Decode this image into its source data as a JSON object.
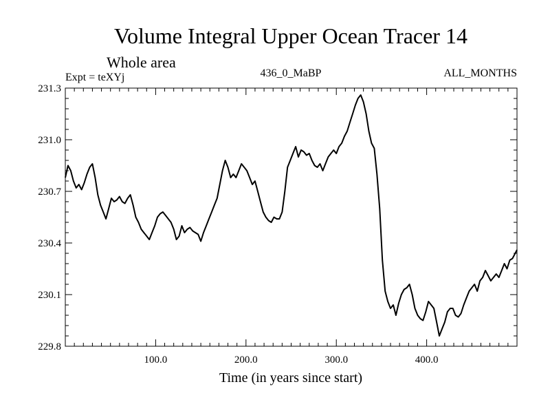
{
  "chart_data": {
    "type": "line",
    "title": "Volume Integral Upper Ocean Tracer 14",
    "subtitle": "Whole area",
    "expt_label": "Expt = teXYj",
    "center_label": "436_0_MaBP",
    "right_label": "ALL_MONTHS",
    "xlabel": "Time (in years since start)",
    "ylabel": "",
    "xlim": [
      0,
      500
    ],
    "ylim": [
      229.8,
      231.3
    ],
    "x_ticks": [
      100,
      200,
      300,
      400
    ],
    "x_tick_labels": [
      "100.0",
      "200.0",
      "300.0",
      "400.0"
    ],
    "y_ticks": [
      229.8,
      230.1,
      230.4,
      230.7,
      231.0,
      231.3
    ],
    "y_tick_labels": [
      "229.8",
      "230.1",
      "230.4",
      "230.7",
      "231.0",
      "231.3"
    ],
    "grid": false,
    "series": [
      {
        "color": "#000000",
        "x": [
          0,
          3,
          6,
          9,
          12,
          15,
          18,
          21,
          24,
          27,
          30,
          33,
          36,
          39,
          42,
          45,
          48,
          51,
          54,
          57,
          60,
          63,
          66,
          69,
          72,
          75,
          78,
          81,
          84,
          87,
          90,
          93,
          96,
          99,
          102,
          105,
          108,
          111,
          114,
          117,
          120,
          123,
          126,
          129,
          132,
          135,
          138,
          141,
          144,
          147,
          150,
          153,
          156,
          159,
          162,
          165,
          168,
          171,
          174,
          177,
          180,
          183,
          186,
          189,
          192,
          195,
          198,
          201,
          204,
          207,
          210,
          213,
          216,
          219,
          222,
          225,
          228,
          231,
          234,
          237,
          240,
          243,
          246,
          249,
          252,
          255,
          258,
          261,
          264,
          267,
          270,
          273,
          276,
          279,
          282,
          285,
          288,
          291,
          294,
          297,
          300,
          303,
          306,
          309,
          312,
          315,
          318,
          321,
          324,
          327,
          330,
          333,
          336,
          339,
          342,
          345,
          348,
          351,
          354,
          357,
          360,
          363,
          366,
          369,
          372,
          375,
          378,
          381,
          384,
          387,
          390,
          393,
          396,
          399,
          402,
          405,
          408,
          411,
          414,
          417,
          420,
          423,
          426,
          429,
          432,
          435,
          438,
          441,
          444,
          447,
          450,
          453,
          456,
          459,
          462,
          465,
          468,
          471,
          474,
          477,
          480,
          483,
          486,
          489,
          492,
          495,
          498,
          500
        ],
        "values": [
          230.78,
          230.85,
          230.82,
          230.76,
          230.72,
          230.74,
          230.71,
          230.75,
          230.8,
          230.84,
          230.86,
          230.78,
          230.68,
          230.62,
          230.58,
          230.54,
          230.6,
          230.66,
          230.64,
          230.65,
          230.67,
          230.64,
          230.63,
          230.66,
          230.68,
          230.62,
          230.55,
          230.52,
          230.48,
          230.46,
          230.44,
          230.42,
          230.46,
          230.5,
          230.55,
          230.57,
          230.58,
          230.56,
          230.54,
          230.52,
          230.48,
          230.42,
          230.44,
          230.5,
          230.46,
          230.48,
          230.49,
          230.47,
          230.46,
          230.45,
          230.41,
          230.46,
          230.5,
          230.54,
          230.58,
          230.62,
          230.66,
          230.74,
          230.82,
          230.88,
          230.84,
          230.78,
          230.8,
          230.78,
          230.82,
          230.86,
          230.84,
          230.82,
          230.78,
          230.74,
          230.76,
          230.7,
          230.64,
          230.58,
          230.55,
          230.53,
          230.52,
          230.55,
          230.54,
          230.54,
          230.58,
          230.7,
          230.84,
          230.88,
          230.92,
          230.96,
          230.9,
          230.94,
          230.93,
          230.91,
          230.92,
          230.88,
          230.85,
          230.84,
          230.86,
          230.82,
          230.86,
          230.9,
          230.92,
          230.94,
          230.92,
          230.96,
          230.98,
          231.02,
          231.05,
          231.1,
          231.15,
          231.2,
          231.24,
          231.26,
          231.22,
          231.15,
          231.05,
          230.98,
          230.95,
          230.8,
          230.6,
          230.3,
          230.12,
          230.06,
          230.02,
          230.04,
          229.98,
          230.05,
          230.1,
          230.13,
          230.14,
          230.16,
          230.1,
          230.02,
          229.98,
          229.96,
          229.95,
          230.0,
          230.06,
          230.04,
          230.02,
          229.94,
          229.86,
          229.9,
          229.94,
          230.0,
          230.02,
          230.02,
          229.98,
          229.97,
          229.99,
          230.04,
          230.08,
          230.12,
          230.14,
          230.16,
          230.12,
          230.18,
          230.2,
          230.24,
          230.21,
          230.18,
          230.2,
          230.22,
          230.2,
          230.24,
          230.28,
          230.25,
          230.3,
          230.31,
          230.34,
          230.36
        ]
      }
    ]
  }
}
